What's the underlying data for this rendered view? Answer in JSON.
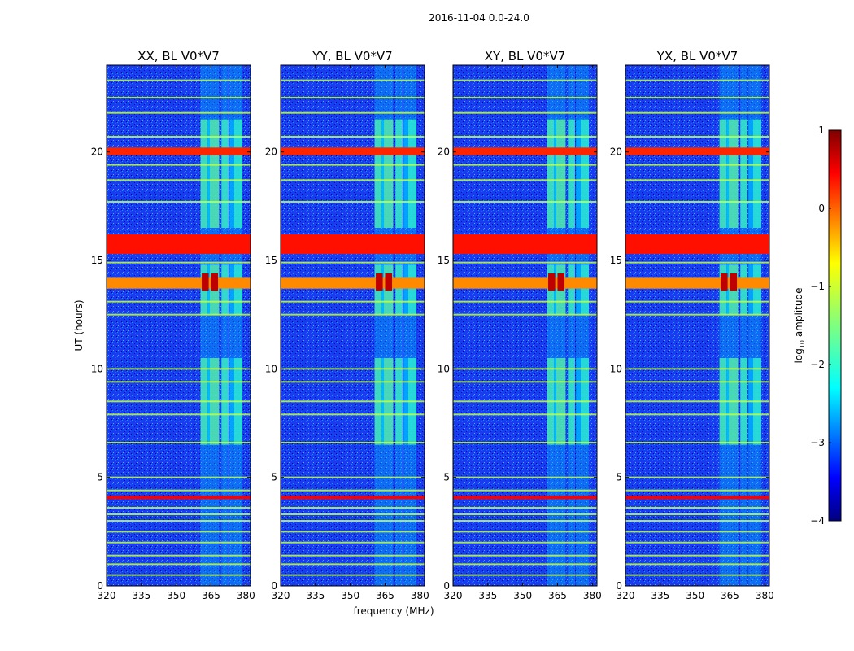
{
  "chart_data": {
    "type": "heatmap",
    "suptitle": "2016-11-04 0.0-24.0",
    "panels": [
      {
        "title": "XX, BL V0*V7"
      },
      {
        "title": "YY, BL V0*V7"
      },
      {
        "title": "XY, BL V0*V7"
      },
      {
        "title": "YX, BL V0*V7"
      }
    ],
    "xlabel": "frequency (MHz)",
    "ylabel": "UT (hours)",
    "xlim": [
      320,
      382
    ],
    "ylim": [
      0,
      24
    ],
    "xticks": [
      320,
      335,
      350,
      365,
      380
    ],
    "yticks": [
      0,
      5,
      10,
      15,
      20
    ],
    "colorbar": {
      "label": "log",
      "label_sub": "10",
      "label_suffix": " amplitude",
      "range": [
        -4,
        1
      ],
      "ticks": [
        "1",
        "0",
        "−1",
        "−2",
        "−3",
        "−4"
      ],
      "tick_values": [
        1,
        0,
        -1,
        -2,
        -3,
        -4
      ],
      "colormap": "jet"
    },
    "background_log_amplitude": -3.1,
    "rfi_bands_mhz": [
      {
        "f0": 360.5,
        "f1": 363.5,
        "level": -1.6
      },
      {
        "f0": 363.5,
        "f1": 364.5,
        "level": -2.4
      },
      {
        "f0": 364.5,
        "f1": 368.5,
        "level": -1.5
      },
      {
        "f0": 369.5,
        "f1": 372.5,
        "level": -1.7
      },
      {
        "f0": 373.0,
        "f1": 375.0,
        "level": -2.6
      },
      {
        "f0": 375.0,
        "f1": 378.5,
        "level": -1.8
      }
    ],
    "rfi_band_hours": [
      [
        6.5,
        10.5
      ],
      [
        16.5,
        21.5
      ],
      [
        12.5,
        14.8
      ]
    ],
    "strong_hour_bands": [
      {
        "t0": 19.85,
        "t1": 20.2,
        "level": 0.2
      },
      {
        "t0": 15.3,
        "t1": 16.2,
        "level": 0.3
      },
      {
        "t0": 13.7,
        "t1": 14.2,
        "level": -0.3
      },
      {
        "t0": 4.0,
        "t1": 4.15,
        "level": 0.4
      }
    ],
    "hot_spots": [
      {
        "f0": 361,
        "f1": 364,
        "t0": 13.6,
        "t1": 14.4,
        "level": 0.7
      },
      {
        "f0": 365,
        "f1": 368,
        "t0": 13.6,
        "t1": 14.4,
        "level": 0.7
      }
    ],
    "weak_hour_lines": [
      0.5,
      1.0,
      1.4,
      2.0,
      2.5,
      3.0,
      3.3,
      3.6,
      4.4,
      5.0,
      6.6,
      7.9,
      8.5,
      9.4,
      10.0,
      12.5,
      13.1,
      14.9,
      17.7,
      18.7,
      19.4,
      20.7,
      21.8,
      22.5,
      23.3
    ]
  }
}
